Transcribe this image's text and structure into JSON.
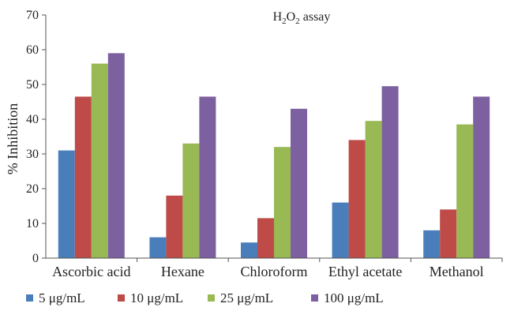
{
  "chart_data": {
    "type": "bar",
    "title": "H2O2 assay",
    "title_parts": {
      "pre": "H",
      "sub1": "2",
      "mid": "O",
      "sub2": "2",
      "post": " assay"
    },
    "xlabel": "",
    "ylabel": "% Inhibition",
    "ylim": [
      0,
      70
    ],
    "yticks": [
      0,
      10,
      20,
      30,
      40,
      50,
      60,
      70
    ],
    "grid": false,
    "legend_position": "bottom",
    "categories": [
      "Ascorbic acid",
      "Hexane",
      "Chloroform",
      "Ethyl acetate",
      "Methanol"
    ],
    "series": [
      {
        "name": "5 μg/mL",
        "color": "#4a7ebb",
        "values": [
          31,
          6,
          4.5,
          16,
          8
        ]
      },
      {
        "name": "10 μg/mL",
        "color": "#be4b48",
        "values": [
          46.5,
          18,
          11.5,
          34,
          14
        ]
      },
      {
        "name": "25 μg/mL",
        "color": "#98b954",
        "values": [
          56,
          33,
          32,
          39.5,
          38.5
        ]
      },
      {
        "name": "100 μg/mL",
        "color": "#7d60a0",
        "values": [
          59,
          46.5,
          43,
          49.5,
          46.5
        ]
      }
    ]
  }
}
